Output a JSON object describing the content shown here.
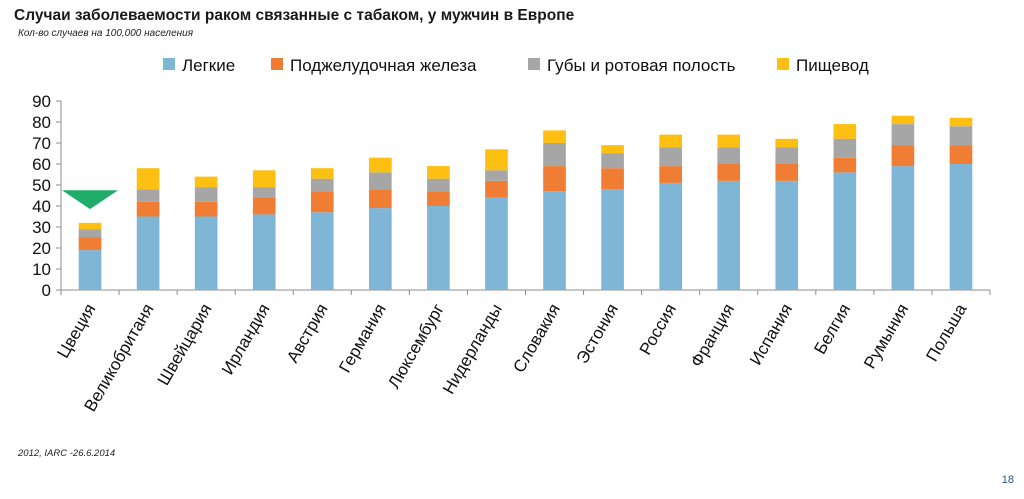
{
  "header": {
    "title": "Случаи заболеваемости раком связанные с табаком, у мужчин в Европе",
    "subtitle": "Кол-во случаев на 100,000 населения"
  },
  "footer": {
    "source": "2012, IARC -26.6.2014",
    "page_number": "18"
  },
  "colors": {
    "lungs": "#7fb6d6",
    "pancreas": "#ef7d33",
    "lips_oral": "#a6a6a6",
    "esophagus": "#fcbf12",
    "marker": "#1fae6a"
  },
  "chart_data": {
    "type": "bar",
    "stacked": true,
    "title": "Случаи заболеваемости раком связанные с табаком, у мужчин в Европе",
    "subtitle": "Кол-во случаев на 100,000 населения",
    "xlabel": "",
    "ylabel": "",
    "ylim": [
      0,
      90
    ],
    "yticks": [
      0,
      10,
      20,
      30,
      40,
      50,
      60,
      70,
      80,
      90
    ],
    "grid": false,
    "legend_position": "top",
    "highlight_marker": {
      "category": "Цвеция",
      "shape": "triangle-down"
    },
    "categories": [
      "Цвеция",
      "Великобританя",
      "Швейцария",
      "Ирландия",
      "Австрия",
      "Германия",
      "Люксембург",
      "Нидерланды",
      "Словакия",
      "Эстония",
      "Россия",
      "Франция",
      "Испания",
      "Белгия",
      "Румыния",
      "Польша"
    ],
    "series": [
      {
        "name": "Легкие",
        "color": "#7fb6d6",
        "values": [
          19,
          35,
          35,
          36,
          37,
          39,
          40,
          44,
          47,
          48,
          51,
          52,
          52,
          56,
          59,
          60
        ]
      },
      {
        "name": "Поджелудочная железа",
        "color": "#ef7d33",
        "values": [
          6,
          7,
          7,
          8,
          10,
          9,
          7,
          8,
          12,
          10,
          8,
          8,
          8,
          7,
          10,
          9
        ]
      },
      {
        "name": "Губы и ротовая полость",
        "color": "#a6a6a6",
        "values": [
          4,
          6,
          7,
          5,
          6,
          8,
          6,
          5,
          11,
          7,
          9,
          8,
          8,
          9,
          10,
          9
        ]
      },
      {
        "name": "Пищевод",
        "color": "#fcbf12",
        "values": [
          3,
          10,
          5,
          8,
          5,
          7,
          6,
          10,
          6,
          4,
          6,
          6,
          4,
          7,
          4,
          4
        ]
      }
    ]
  }
}
